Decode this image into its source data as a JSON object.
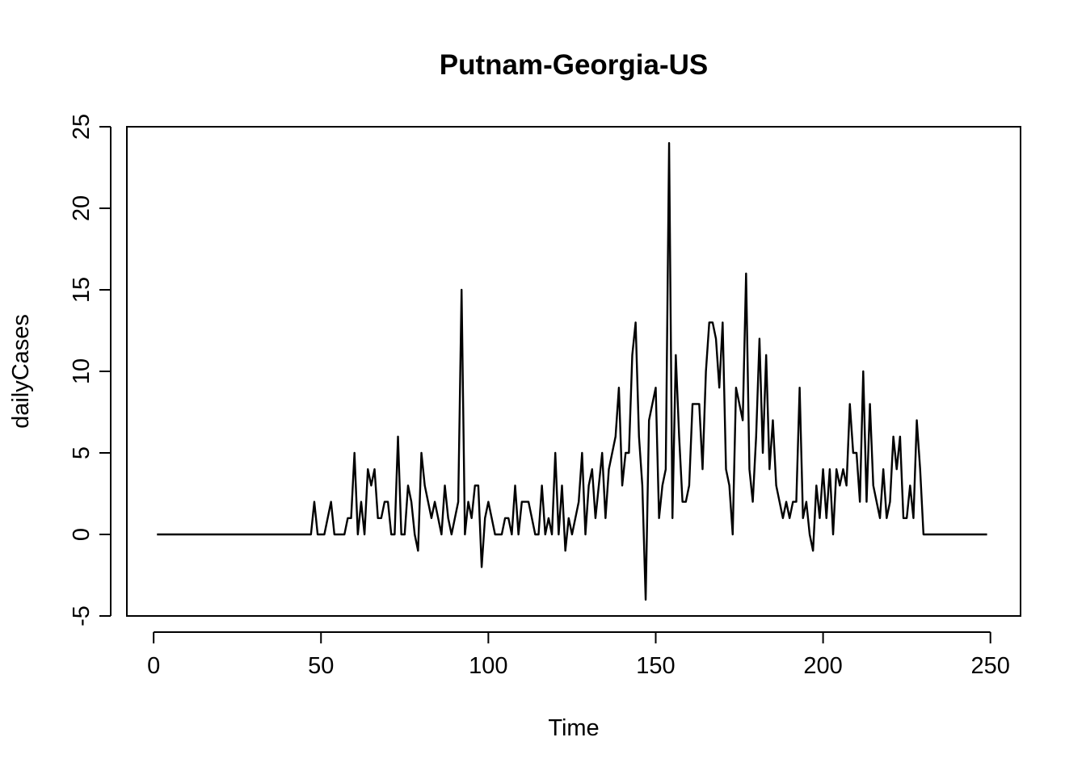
{
  "chart_data": {
    "type": "line",
    "title": "Putnam-Georgia-US",
    "xlabel": "Time",
    "ylabel": "dailyCases",
    "xlim": [
      -8,
      259
    ],
    "ylim": [
      -5,
      25
    ],
    "xticks": [
      0,
      50,
      100,
      150,
      200,
      250
    ],
    "yticks": [
      -5,
      0,
      5,
      10,
      15,
      20,
      25
    ],
    "xtick_labels": [
      "0",
      "50",
      "100",
      "150",
      "200",
      "250"
    ],
    "ytick_labels": [
      "-5",
      "0",
      "5",
      "10",
      "15",
      "20",
      "25"
    ],
    "grid": false,
    "line_color": "#000000",
    "series": [
      {
        "x_start": 1,
        "values": [
          0,
          0,
          0,
          0,
          0,
          0,
          0,
          0,
          0,
          0,
          0,
          0,
          0,
          0,
          0,
          0,
          0,
          0,
          0,
          0,
          0,
          0,
          0,
          0,
          0,
          0,
          0,
          0,
          0,
          0,
          0,
          0,
          0,
          0,
          0,
          0,
          0,
          0,
          0,
          0,
          0,
          0,
          0,
          0,
          0,
          0,
          0,
          2,
          0,
          0,
          0,
          1,
          2,
          0,
          0,
          0,
          0,
          1,
          1,
          5,
          0,
          2,
          0,
          4,
          3,
          4,
          1,
          1,
          2,
          2,
          0,
          0,
          6,
          0,
          0,
          3,
          2,
          0,
          -1,
          5,
          3,
          2,
          1,
          2,
          1,
          0,
          3,
          1,
          0,
          1,
          2,
          15,
          0,
          2,
          1,
          3,
          3,
          -2,
          1,
          2,
          1,
          0,
          0,
          0,
          1,
          1,
          0,
          3,
          0,
          2,
          2,
          2,
          1,
          0,
          0,
          3,
          0,
          1,
          0,
          5,
          0,
          3,
          -1,
          1,
          0,
          1,
          2,
          5,
          0,
          3,
          4,
          1,
          3,
          5,
          1,
          4,
          5,
          6,
          9,
          3,
          5,
          5,
          11,
          13,
          6,
          3,
          -4,
          7,
          8,
          9,
          1,
          3,
          4,
          24,
          1,
          11,
          6,
          2,
          2,
          3,
          8,
          8,
          8,
          4,
          10,
          13,
          13,
          12,
          9,
          13,
          4,
          3,
          0,
          9,
          8,
          7,
          16,
          4,
          2,
          6,
          12,
          5,
          11,
          4,
          7,
          3,
          2,
          1,
          2,
          1,
          2,
          2,
          9,
          1,
          2,
          0,
          -1,
          3,
          1,
          4,
          1,
          4,
          0,
          4,
          3,
          4,
          3,
          8,
          5,
          5,
          2,
          10,
          2,
          8,
          3,
          2,
          1,
          4,
          1,
          2,
          6,
          4,
          6,
          1,
          1,
          3,
          1,
          7,
          4,
          0,
          0,
          0,
          0,
          0,
          0,
          0,
          0,
          0,
          0,
          0,
          0,
          0,
          0,
          0,
          0,
          0,
          0,
          0,
          0
        ]
      }
    ]
  }
}
